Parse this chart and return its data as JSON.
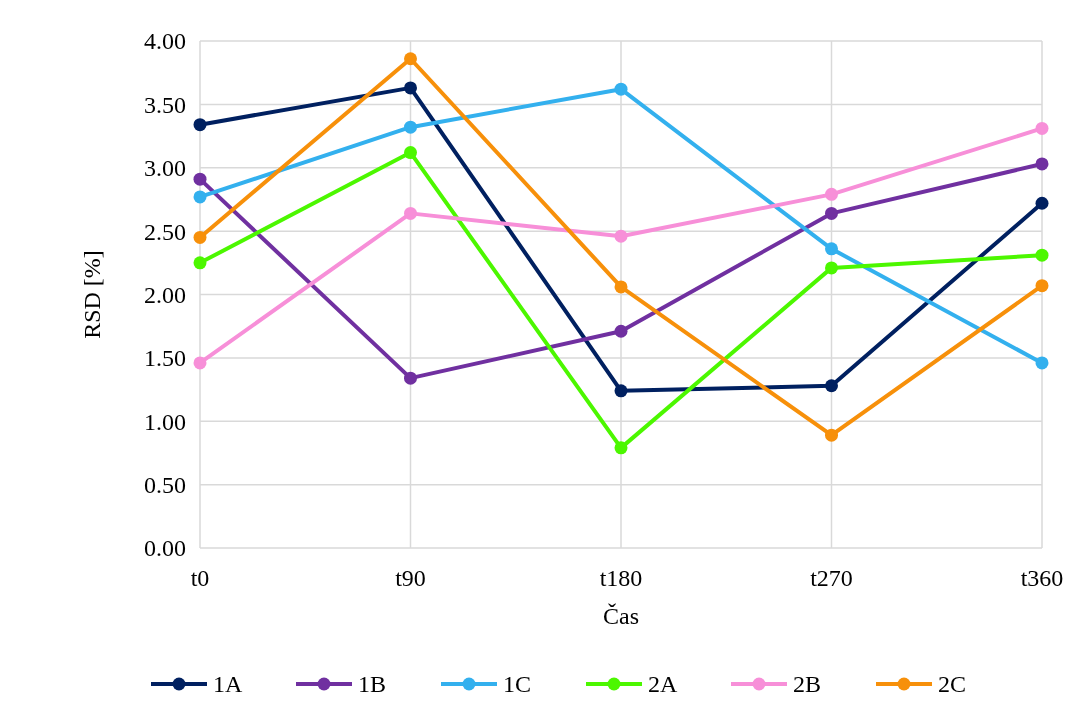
{
  "chart_data": {
    "type": "line",
    "xlabel": "Čas",
    "ylabel": "RSD [%]",
    "categories": [
      "t0",
      "t90",
      "t180",
      "t270",
      "t360"
    ],
    "series": [
      {
        "name": "1A",
        "color": "#002060",
        "values": [
          3.34,
          3.63,
          1.24,
          1.28,
          2.72
        ]
      },
      {
        "name": "1B",
        "color": "#7030a0",
        "values": [
          2.91,
          1.34,
          1.71,
          2.64,
          3.03
        ]
      },
      {
        "name": "1C",
        "color": "#33b0ee",
        "values": [
          2.77,
          3.32,
          3.62,
          2.36,
          1.46
        ]
      },
      {
        "name": "2A",
        "color": "#4cf700",
        "values": [
          2.25,
          3.12,
          0.79,
          2.21,
          2.31
        ]
      },
      {
        "name": "2B",
        "color": "#f78fd8",
        "values": [
          1.46,
          2.64,
          2.46,
          2.79,
          3.31
        ]
      },
      {
        "name": "2C",
        "color": "#f7900a",
        "values": [
          2.45,
          3.86,
          2.06,
          0.89,
          2.07
        ]
      }
    ],
    "ylim": [
      0,
      4
    ],
    "yticks": [
      {
        "value": 0,
        "label": "0.00"
      },
      {
        "value": 0.5,
        "label": "0.50"
      },
      {
        "value": 1,
        "label": "1.00"
      },
      {
        "value": 1.5,
        "label": "1.50"
      },
      {
        "value": 2,
        "label": "2.00"
      },
      {
        "value": 2.5,
        "label": "2.50"
      },
      {
        "value": 3,
        "label": "3.00"
      },
      {
        "value": 3.5,
        "label": "3.50"
      },
      {
        "value": 4,
        "label": "4.00"
      }
    ],
    "grid": true,
    "legend": "bottom",
    "marker": "circle",
    "line_style": "solid"
  }
}
